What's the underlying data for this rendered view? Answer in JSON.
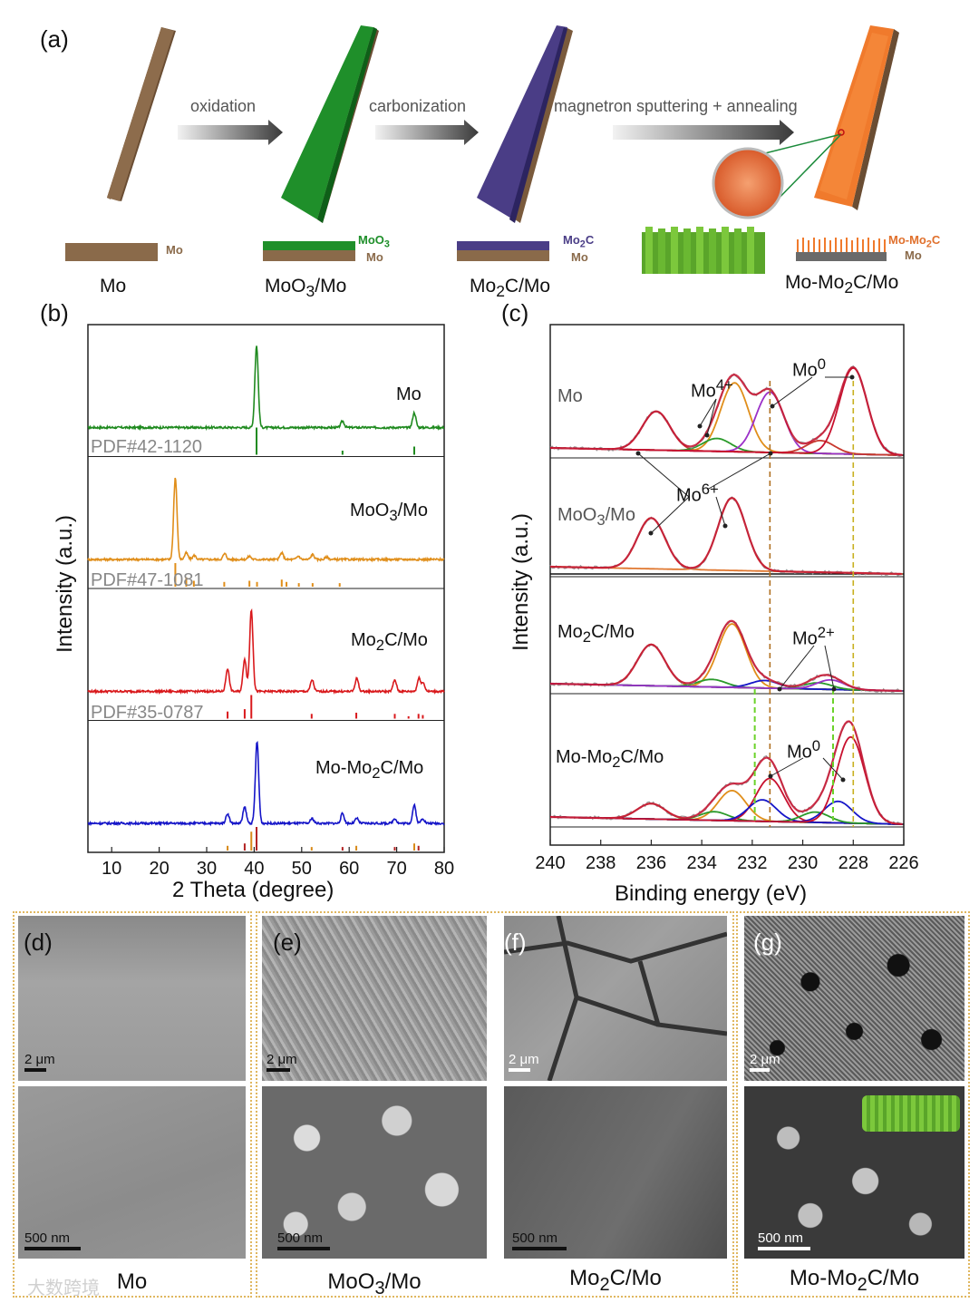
{
  "panels": {
    "a": "(a)",
    "b": "(b)",
    "c": "(c)",
    "d": "(d)",
    "e": "(e)",
    "f": "(f)",
    "g": "(g)"
  },
  "schematic": {
    "steps": [
      "oxidation",
      "carbonization",
      "magnetron sputtering + annealing"
    ],
    "samples": [
      "Mo",
      "MoO3/Mo",
      "Mo2C/Mo",
      "Mo-Mo2C/Mo"
    ],
    "layers": {
      "mo": "Mo",
      "moo3": "MoO3",
      "mo2c": "Mo2C",
      "momo2c": "Mo-Mo2C"
    },
    "colors": {
      "mo": "#8a6a4a",
      "moo3": "#1f8f2a",
      "mo2c": "#4a3d86",
      "momo2c": "#f07a2c"
    }
  },
  "chart_data": [
    {
      "type": "line",
      "panel": "b",
      "xlabel": "2 Theta (degree)",
      "ylabel": "Intensity (a.u.)",
      "xlim": [
        5,
        80
      ],
      "xticks": [
        10,
        20,
        30,
        40,
        50,
        60,
        70,
        80
      ],
      "series": [
        {
          "name": "Mo",
          "color": "#1f8a1f",
          "reference": "PDF#42-1120",
          "peaks": [
            [
              40.5,
              1.0
            ],
            [
              58.6,
              0.08
            ],
            [
              73.7,
              0.18
            ]
          ],
          "ref_lines": [
            [
              40.5,
              1.0
            ],
            [
              58.6,
              0.15
            ],
            [
              73.7,
              0.3
            ]
          ]
        },
        {
          "name": "MoO3/Mo",
          "color": "#e08e1a",
          "reference": "PDF#47-1081",
          "peaks": [
            [
              23.4,
              1.0
            ],
            [
              25.7,
              0.08
            ],
            [
              27.4,
              0.05
            ],
            [
              33.8,
              0.07
            ],
            [
              39.0,
              0.04
            ],
            [
              45.8,
              0.08
            ],
            [
              49.3,
              0.04
            ],
            [
              52.3,
              0.06
            ],
            [
              55.3,
              0.03
            ]
          ],
          "ref_lines": [
            [
              23.4,
              1.0
            ],
            [
              25.7,
              0.4
            ],
            [
              27.3,
              0.25
            ],
            [
              33.7,
              0.2
            ],
            [
              39.0,
              0.25
            ],
            [
              40.6,
              0.2
            ],
            [
              45.8,
              0.3
            ],
            [
              46.8,
              0.2
            ],
            [
              49.4,
              0.15
            ],
            [
              52.3,
              0.15
            ],
            [
              58.0,
              0.15
            ]
          ]
        },
        {
          "name": "Mo2C/Mo",
          "color": "#d9191c",
          "reference": "PDF#35-0787",
          "peaks": [
            [
              34.4,
              0.28
            ],
            [
              38.0,
              0.4
            ],
            [
              39.4,
              1.0
            ],
            [
              52.2,
              0.14
            ],
            [
              61.6,
              0.16
            ],
            [
              69.6,
              0.14
            ],
            [
              74.7,
              0.16
            ],
            [
              75.6,
              0.1
            ]
          ],
          "ref_lines": [
            [
              34.4,
              0.3
            ],
            [
              38.0,
              0.4
            ],
            [
              39.4,
              1.0
            ],
            [
              52.1,
              0.2
            ],
            [
              61.5,
              0.25
            ],
            [
              69.6,
              0.2
            ],
            [
              72.5,
              0.1
            ],
            [
              74.6,
              0.2
            ],
            [
              75.5,
              0.15
            ]
          ]
        },
        {
          "name": "Mo-Mo2C/Mo",
          "color": "#1515c8",
          "reference": "",
          "peaks": [
            [
              34.4,
              0.12
            ],
            [
              38.0,
              0.2
            ],
            [
              40.6,
              1.0
            ],
            [
              52.2,
              0.06
            ],
            [
              58.6,
              0.12
            ],
            [
              61.6,
              0.06
            ],
            [
              69.6,
              0.06
            ],
            [
              73.7,
              0.22
            ],
            [
              75.5,
              0.06
            ]
          ],
          "ref_lines": [
            [
              34.4,
              0.2
            ],
            [
              38.0,
              0.3
            ],
            [
              39.4,
              0.8
            ],
            [
              40.5,
              1.0
            ],
            [
              52.1,
              0.15
            ],
            [
              58.6,
              0.15
            ],
            [
              61.5,
              0.2
            ],
            [
              69.6,
              0.15
            ],
            [
              73.7,
              0.3
            ],
            [
              74.6,
              0.2
            ]
          ]
        }
      ]
    },
    {
      "type": "line",
      "panel": "c",
      "xlabel": "Binding energy (eV)",
      "ylabel": "Intensity (a.u.)",
      "xlim": [
        240,
        226
      ],
      "xticks": [
        240,
        238,
        236,
        234,
        232,
        230,
        228,
        226
      ],
      "series": [
        {
          "name": "Mo",
          "components": [
            [
              235.8,
              0.45,
              "#c8382e"
            ],
            [
              232.7,
              0.8,
              "#e08e1a"
            ],
            [
              233.4,
              0.15,
              "#2a9a2a"
            ],
            [
              231.3,
              0.7,
              "#9b30c8"
            ],
            [
              229.3,
              0.15,
              "#c8382e"
            ],
            [
              228.0,
              1.0,
              "#c8102e"
            ]
          ]
        },
        {
          "name": "MoO3/Mo",
          "components": [
            [
              236.0,
              0.7,
              "#e07830"
            ],
            [
              232.8,
              1.0,
              "#e07830"
            ]
          ]
        },
        {
          "name": "Mo2C/Mo",
          "components": [
            [
              236.0,
              0.65,
              "#e07830"
            ],
            [
              232.8,
              1.0,
              "#e08e1a"
            ],
            [
              233.6,
              0.12,
              "#2a9a2a"
            ],
            [
              231.5,
              0.12,
              "#1515c8"
            ],
            [
              229.4,
              0.1,
              "#2a9a2a"
            ],
            [
              228.9,
              0.15,
              "#9b30c8"
            ]
          ]
        },
        {
          "name": "Mo-Mo2C/Mo",
          "components": [
            [
              236.0,
              0.18,
              "#e07830"
            ],
            [
              232.8,
              0.35,
              "#e08e1a"
            ],
            [
              233.5,
              0.1,
              "#2a9a2a"
            ],
            [
              231.3,
              0.5,
              "#c8102e"
            ],
            [
              231.6,
              0.25,
              "#1515c8"
            ],
            [
              229.5,
              0.12,
              "#2a9a2a"
            ],
            [
              228.6,
              0.25,
              "#1515c8"
            ],
            [
              228.1,
              1.0,
              "#c8102e"
            ]
          ]
        }
      ],
      "annotations": [
        "Mo0",
        "Mo4+",
        "Mo6+",
        "Mo2+",
        "Mo0"
      ]
    }
  ],
  "sem": {
    "captions": [
      "Mo",
      "MoO3/Mo",
      "Mo2C/Mo",
      "Mo-Mo2C/Mo"
    ],
    "scale_top": "2 μm",
    "scale_bottom": "500 nm"
  },
  "watermark": "大数跨境"
}
